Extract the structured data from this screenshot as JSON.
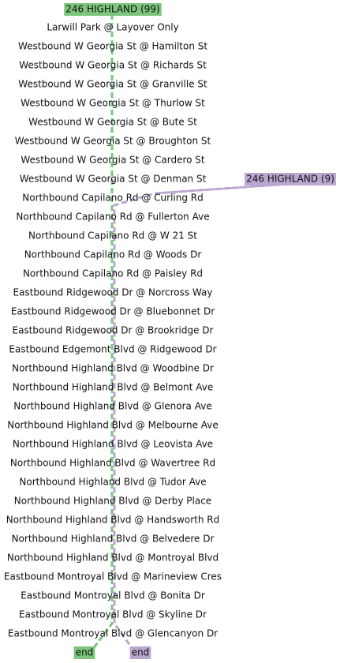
{
  "routes": [
    {
      "label": "246 HIGHLAND (99)",
      "color": "#7dc47d"
    },
    {
      "label": "246 HIGHLAND (9)",
      "color": "#b9a7d0"
    }
  ],
  "stops": [
    "Larwill Park @ Layover Only",
    "Westbound W Georgia St @ Hamilton St",
    "Westbound W Georgia St @ Richards St",
    "Westbound W Georgia St @ Granville St",
    "Westbound W Georgia St @ Thurlow St",
    "Westbound W Georgia St @ Bute St",
    "Westbound W Georgia St @ Broughton St",
    "Westbound W Georgia St @ Cardero St",
    "Westbound W Georgia St @ Denman St",
    "Northbound Capilano Rd @ Curling Rd",
    "Northbound Capilano Rd @ Fullerton Ave",
    "Northbound Capilano Rd @ W 21 St",
    "Northbound Capilano Rd @ Woods Dr",
    "Northbound Capilano Rd @ Paisley Rd",
    "Eastbound Ridgewood Dr @ Norcross Way",
    "Eastbound Ridgewood Dr @ Bluebonnet Dr",
    "Eastbound Ridgewood Dr @ Brookridge Dr",
    "Eastbound Edgemont Blvd @ Ridgewood Dr",
    "Northbound Highland Blvd @ Woodbine Dr",
    "Northbound Highland Blvd @ Belmont Ave",
    "Northbound Highland Blvd @ Glenora Ave",
    "Northbound Highland Blvd @ Melbourne Ave",
    "Northbound Highland Blvd @ Leovista Ave",
    "Northbound Highland Blvd @ Wavertree Rd",
    "Northbound Highland Blvd @ Tudor Ave",
    "Northbound Highland Blvd @ Derby Place",
    "Northbound Highland Blvd @ Handsworth Rd",
    "Northbound Highland Blvd @ Belvedere Dr",
    "Northbound Highland Blvd @ Montroyal Blvd",
    "Eastbound Montroyal Blvd @ Marineview Cres",
    "Eastbound Montroyal Blvd @ Bonita Dr",
    "Eastbound Montroyal Blvd @ Skyline Dr",
    "Eastbound Montroyal Blvd @ Glencanyon Dr"
  ],
  "ends": [
    "end",
    "end"
  ]
}
